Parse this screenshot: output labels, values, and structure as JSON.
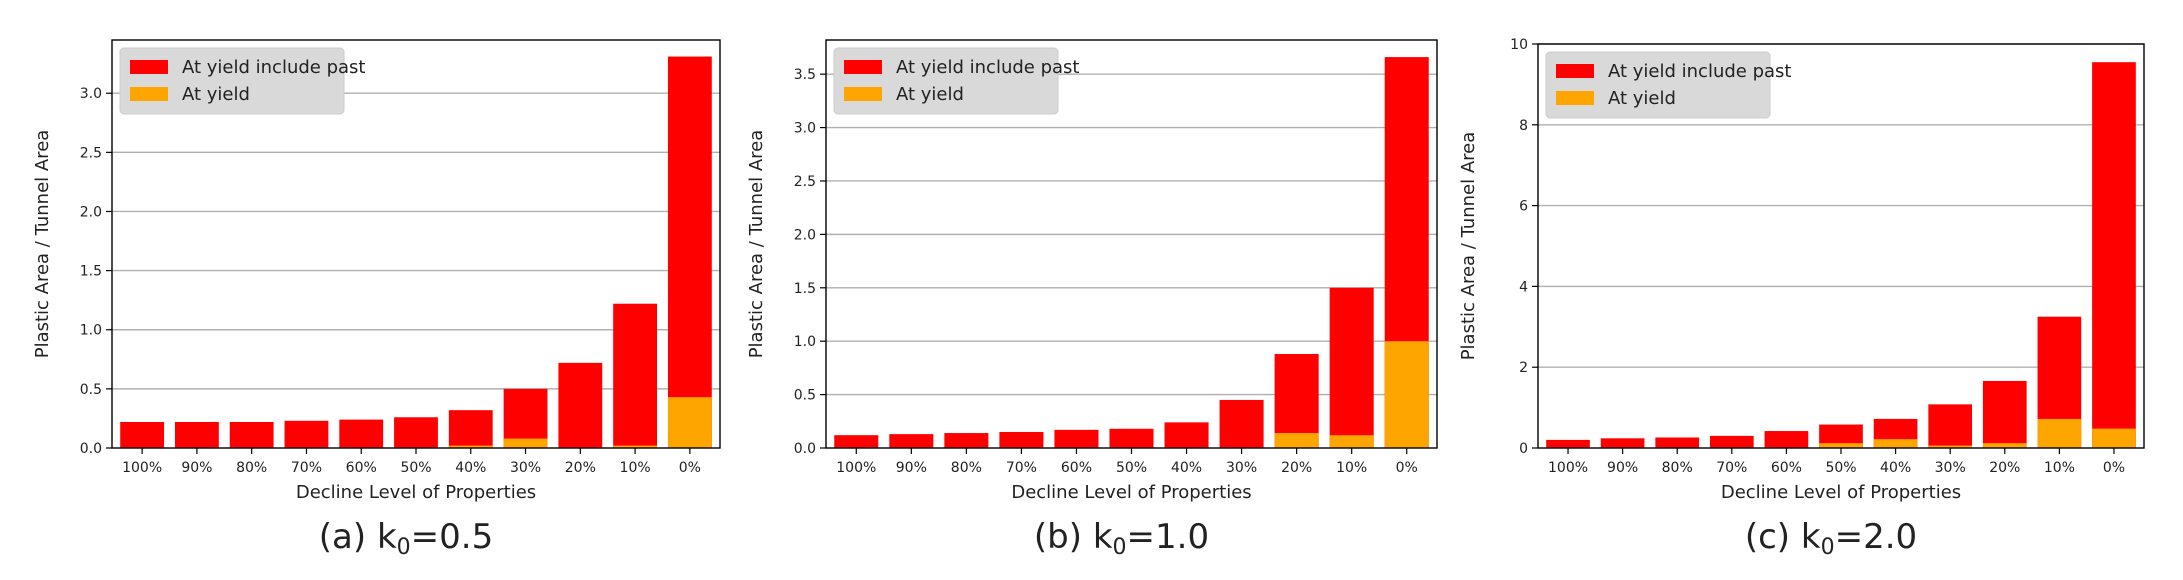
{
  "colors": {
    "include_past": "#ff0000",
    "at_yield": "#ffa500",
    "grid": "#b0b0b0",
    "legend_bg": "#d9d9d9"
  },
  "chart_data": [
    {
      "type": "bar",
      "stacked": false,
      "overlay": true,
      "caption": {
        "prefix": "(a) k",
        "sub": "0",
        "suffix": "=0.5"
      },
      "categories": [
        "100%",
        "90%",
        "80%",
        "70%",
        "60%",
        "50%",
        "40%",
        "30%",
        "20%",
        "10%",
        "0%"
      ],
      "series": [
        {
          "name": "At yield include past",
          "color": "#ff0000",
          "values": [
            0.22,
            0.22,
            0.22,
            0.23,
            0.24,
            0.26,
            0.32,
            0.5,
            0.72,
            1.22,
            3.31
          ]
        },
        {
          "name": "At yield",
          "color": "#ffa500",
          "values": [
            0.0,
            0.0,
            0.0,
            0.0,
            0.0,
            0.0,
            0.02,
            0.08,
            0.0,
            0.02,
            0.43
          ]
        }
      ],
      "xlabel": "Decline Level of Properties",
      "ylabel": "Plastic Area / Tunnel Area",
      "ylim": [
        0,
        3.45
      ],
      "yticks": [
        "0.0",
        "0.5",
        "1.0",
        "1.5",
        "2.0",
        "2.5",
        "3.0"
      ],
      "grid": "y",
      "legend": "top-left"
    },
    {
      "type": "bar",
      "stacked": false,
      "overlay": true,
      "caption": {
        "prefix": "(b) k",
        "sub": "0",
        "suffix": "=1.0"
      },
      "categories": [
        "100%",
        "90%",
        "80%",
        "70%",
        "60%",
        "50%",
        "40%",
        "30%",
        "20%",
        "10%",
        "0%"
      ],
      "series": [
        {
          "name": "At yield include past",
          "color": "#ff0000",
          "values": [
            0.12,
            0.13,
            0.14,
            0.15,
            0.17,
            0.18,
            0.24,
            0.45,
            0.88,
            1.5,
            3.66
          ]
        },
        {
          "name": "At yield",
          "color": "#ffa500",
          "values": [
            0.0,
            0.0,
            0.0,
            0.0,
            0.0,
            0.0,
            0.0,
            0.0,
            0.14,
            0.12,
            1.0
          ]
        }
      ],
      "xlabel": "Decline Level of Properties",
      "ylabel": "Plastic Area / Tunnel Area",
      "ylim": [
        0,
        3.82
      ],
      "yticks": [
        "0.0",
        "0.5",
        "1.0",
        "1.5",
        "2.0",
        "2.5",
        "3.0",
        "3.5"
      ],
      "grid": "y",
      "legend": "top-left"
    },
    {
      "type": "bar",
      "stacked": false,
      "overlay": true,
      "caption": {
        "prefix": "(c) k",
        "sub": "0",
        "suffix": "=2.0"
      },
      "categories": [
        "100%",
        "90%",
        "80%",
        "70%",
        "60%",
        "50%",
        "40%",
        "30%",
        "20%",
        "10%",
        "0%"
      ],
      "series": [
        {
          "name": "At yield include past",
          "color": "#ff0000",
          "values": [
            0.2,
            0.24,
            0.26,
            0.3,
            0.42,
            0.58,
            0.72,
            1.08,
            1.66,
            3.25,
            9.55
          ]
        },
        {
          "name": "At yield",
          "color": "#ffa500",
          "values": [
            0.0,
            0.0,
            0.0,
            0.0,
            0.0,
            0.12,
            0.22,
            0.06,
            0.12,
            0.72,
            0.48
          ]
        }
      ],
      "xlabel": "Decline Level of Properties",
      "ylabel": "Plastic Area / Tunnel Area",
      "ylim": [
        0,
        10
      ],
      "yticks": [
        "0",
        "2",
        "4",
        "6",
        "8",
        "10"
      ],
      "grid": "y",
      "legend": "top-left"
    }
  ]
}
